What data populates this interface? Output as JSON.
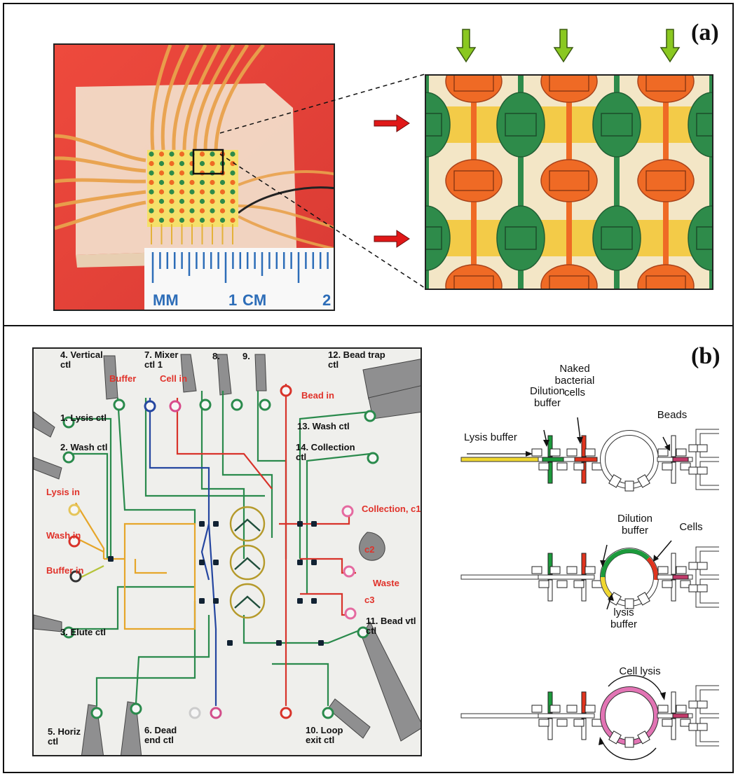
{
  "panel_a": {
    "label": "(a)",
    "ruler": {
      "mm_label": "MM",
      "one_label": "1",
      "cm_label": "CM",
      "two_label": "2"
    }
  },
  "panel_b": {
    "label": "(b)",
    "chip_labels": [
      {
        "id": "vertical",
        "text": "4. Vertical\nctl",
        "color": "black"
      },
      {
        "id": "buffer",
        "text": "Buffer",
        "color": "red"
      },
      {
        "id": "mixer",
        "text": "7. Mixer\nctl 1",
        "color": "black"
      },
      {
        "id": "cellin",
        "text": "Cell in",
        "color": "red"
      },
      {
        "id": "n8",
        "text": "8.",
        "color": "black"
      },
      {
        "id": "n9",
        "text": "9.",
        "color": "black"
      },
      {
        "id": "beadtrap",
        "text": "12. Bead trap\nctl",
        "color": "black"
      },
      {
        "id": "beadin",
        "text": "Bead in",
        "color": "red"
      },
      {
        "id": "lysisctl",
        "text": "1. Lysis ctl",
        "color": "black"
      },
      {
        "id": "washctl13",
        "text": "13. Wash ctl",
        "color": "black"
      },
      {
        "id": "washctl2",
        "text": "2. Wash ctl",
        "color": "black"
      },
      {
        "id": "collectionctl",
        "text": "14. Collection\nctl",
        "color": "black"
      },
      {
        "id": "lysisin",
        "text": "Lysis in",
        "color": "red"
      },
      {
        "id": "collection",
        "text": "Collection, c1",
        "color": "red"
      },
      {
        "id": "washin",
        "text": "Wash in",
        "color": "red"
      },
      {
        "id": "c2",
        "text": "c2",
        "color": "red"
      },
      {
        "id": "bufferin",
        "text": "Buffer in",
        "color": "red"
      },
      {
        "id": "waste",
        "text": "Waste",
        "color": "red"
      },
      {
        "id": "c3",
        "text": "c3",
        "color": "red"
      },
      {
        "id": "elute",
        "text": "3. Elute ctl",
        "color": "black"
      },
      {
        "id": "beadvtl",
        "text": "11. Bead vtl\nctl",
        "color": "black"
      },
      {
        "id": "horiz",
        "text": "5. Horiz\nctl",
        "color": "black"
      },
      {
        "id": "deadend",
        "text": "6. Dead\nend ctl",
        "color": "black"
      },
      {
        "id": "loopexit",
        "text": "10. Loop\nexit ctl",
        "color": "black"
      }
    ],
    "schematic": {
      "step1": {
        "naked_bacterial_cells": "Naked\nbacterial\ncells",
        "dilution_buffer": "Dilution\nbuffer",
        "beads": "Beads",
        "lysis_buffer": "Lysis buffer"
      },
      "step2": {
        "dilution_buffer": "Dilution\nbuffer",
        "cells": "Cells",
        "lysis_buffer": "lysis\nbuffer"
      },
      "step3": {
        "cell_lysis": "Cell lysis"
      }
    }
  },
  "colors": {
    "photo_bg_red": "#e8453c",
    "orange": "#ef6a25",
    "green": "#2e8b4a",
    "yellow": "#f3c21d",
    "arrow_green": "#8ac820",
    "arrow_red": "#e01818",
    "pink": "#e0409a",
    "blue": "#2a4fb0"
  }
}
